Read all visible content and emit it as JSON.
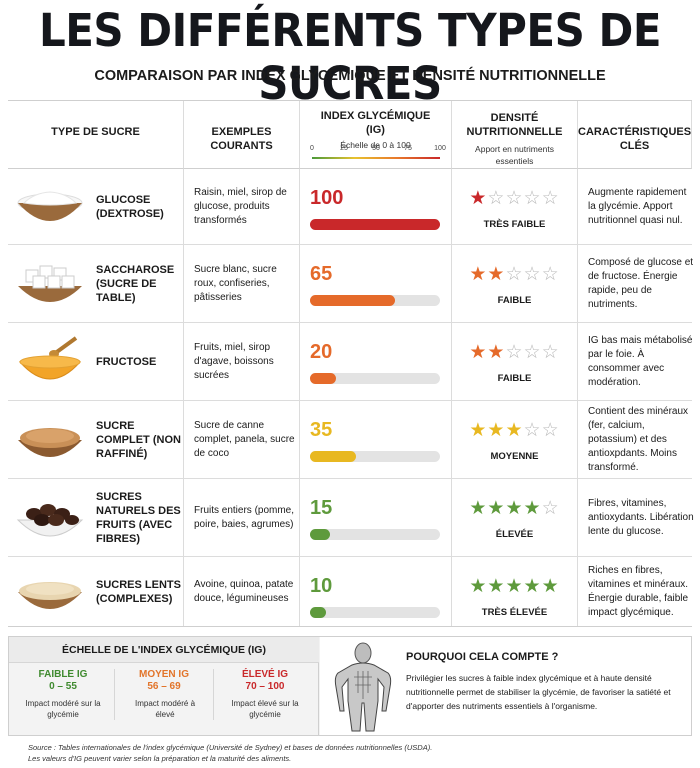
{
  "title": "LES DIFFÉRENTS TYPES DE SUCRES",
  "subtitle": "COMPARAISON PAR INDEX GLYCÉMIQUE ET DENSITÉ NUTRITIONNELLE",
  "headers": {
    "type": "TYPE DE SUCRE",
    "examples": "EXEMPLES COURANTS",
    "ig_title": "INDEX GLYCÉMIQUE",
    "ig_abbr": "(IG)",
    "ig_scale": "Échelle de 0 à 100",
    "ig_ticks": [
      "0",
      "25",
      "50",
      "75",
      "100"
    ],
    "density_title": "DENSITÉ NUTRITIONNELLE",
    "density_sub": "Apport en nutriments essentiels",
    "carac": "CARACTÉRISTIQUES CLÉS"
  },
  "rows": [
    {
      "name": "GLUCOSE (DEXTROSE)",
      "examples": "Raisin, miel, sirop de glucose, produits transformés",
      "ig": "100",
      "ig_value": 100,
      "ig_color": "#c9282a",
      "stars": 1,
      "star_color": "#c9282a",
      "density": "TRÈS FAIBLE",
      "carac": "Augmente rapidement la glycémie. Apport nutritionnel quasi nul.",
      "bowl": "glucose-bowl-icon"
    },
    {
      "name": "SACCHAROSE (SUCRE DE TABLE)",
      "examples": "Sucre blanc, sucre roux, confiseries, pâtisseries",
      "ig": "65",
      "ig_value": 65,
      "ig_color": "#e56a2a",
      "stars": 2,
      "star_color": "#e56a2a",
      "density": "FAIBLE",
      "carac": "Composé de glucose et de fructose. Énergie rapide, peu de nutriments.",
      "bowl": "sugar-cubes-bowl-icon"
    },
    {
      "name": "FRUCTOSE",
      "examples": "Fruits, miel, sirop d'agave, boissons sucrées",
      "ig": "20",
      "ig_value": 20,
      "ig_color": "#e56a2a",
      "stars": 2,
      "star_color": "#e56a2a",
      "density": "FAIBLE",
      "carac": "IG bas mais métabolisé par le foie. À consommer avec modération.",
      "bowl": "honey-bowl-icon"
    },
    {
      "name": "SUCRE COMPLET (NON RAFFINÉ)",
      "examples": "Sucre de canne complet, panela, sucre de coco",
      "ig": "35",
      "ig_value": 35,
      "ig_color": "#e8b821",
      "stars": 3,
      "star_color": "#e8b821",
      "density": "MOYENNE",
      "carac": "Contient des minéraux (fer, calcium, potassium) et des antioxpdants. Moins transformé.",
      "bowl": "brown-sugar-bowl-icon"
    },
    {
      "name": "SUCRES NATURELS DES FRUITS (AVEC FIBRES)",
      "examples": "Fruits entiers (pomme, poire, baies, agrumes)",
      "ig": "15",
      "ig_value": 15,
      "ig_color": "#5e9a3c",
      "stars": 4,
      "star_color": "#5e9a3c",
      "density": "ÉLEVÉE",
      "carac": "Fibres, vitamines, antioxydants. Libération lente du glucose.",
      "bowl": "dates-bowl-icon"
    },
    {
      "name": "SUCRES LENTS (COMPLEXES)",
      "examples": "Avoine, quinoa, patate douce, légumineuses",
      "ig": "10",
      "ig_value": 10,
      "ig_color": "#5e9a3c",
      "stars": 5,
      "star_color": "#5e9a3c",
      "density": "TRÈS ÉLEVÉE",
      "carac": "Riches en fibres, vitamines et minéraux. Énergie durable, faible impact glycémique.",
      "bowl": "oats-bowl-icon"
    }
  ],
  "scale": {
    "title": "ÉCHELLE DE L'INDEX GLYCÉMIQUE (IG)",
    "levels": [
      {
        "label": "FAIBLE IG",
        "range": "0 – 55",
        "desc": "Impact modéré sur la glycémie",
        "color": "#3f8a2f"
      },
      {
        "label": "MOYEN IG",
        "range": "56 – 69",
        "desc": "Impact modéré à élevé",
        "color": "#e2742a"
      },
      {
        "label": "ÉLEVÉ IG",
        "range": "70 – 100",
        "desc": "Impact élevé sur la glycémie",
        "color": "#c9282a"
      }
    ]
  },
  "why": {
    "title": "POURQUOI CELA COMPTE ?",
    "text": "Privilégier les sucres à faible index glycémique et à haute densité nutritionnelle permet de stabiliser la glycémie, de favoriser la satiété et d'apporter des nutriments essentiels à l'organisme."
  },
  "source": {
    "line1": "Source : Tables internationales de l'index glycémique (Université de Sydney) et bases de données nutritionnelles (USDA).",
    "line2": "Les valeurs d'IG peuvent varier selon la préparation et la maturité des aliments."
  }
}
